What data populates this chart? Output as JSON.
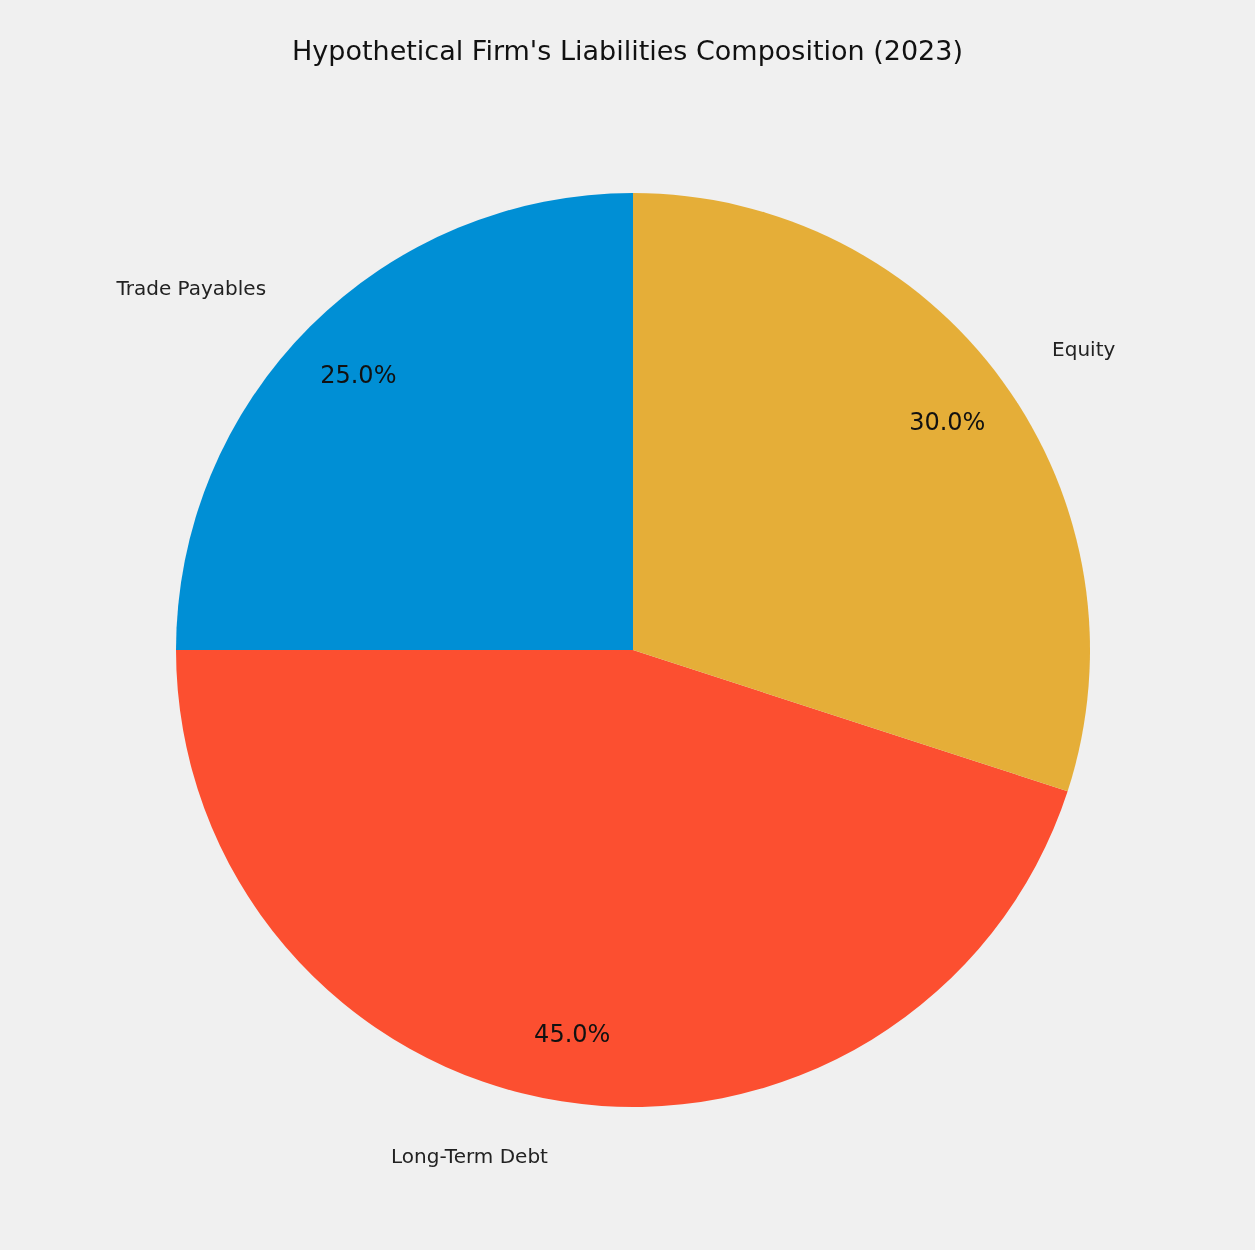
{
  "chart_data": {
    "type": "pie",
    "title": "Hypothetical Firm's Liabilities Composition (2023)",
    "categories": [
      "Trade Payables",
      "Long-Term Debt",
      "Equity"
    ],
    "values": [
      25,
      45,
      30
    ],
    "colors": [
      "#008fd5",
      "#fc4f30",
      "#e5ae38"
    ],
    "value_labels": [
      "25.0%",
      "45.0%",
      "30.0%"
    ]
  }
}
